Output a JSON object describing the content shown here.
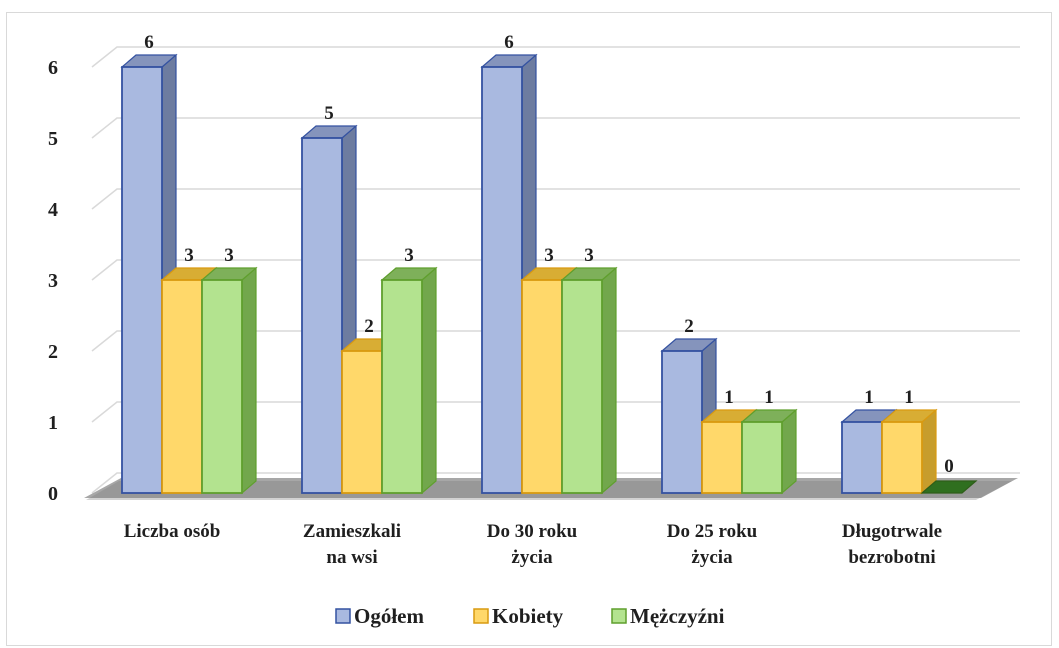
{
  "chart_data": {
    "type": "bar",
    "categories": [
      [
        "Liczba osób"
      ],
      [
        "Zamieszkali",
        "na wsi"
      ],
      [
        "Do 30 roku",
        "życia"
      ],
      [
        "Do 25 roku",
        "życia"
      ],
      [
        "Długotrwale",
        "bezrobotni"
      ]
    ],
    "series": [
      {
        "name": "Ogółem",
        "values": [
          6,
          5,
          6,
          2,
          1
        ],
        "color": "#a9b9e0",
        "side_color": "#6d7ca0",
        "top_color": "#8594bc",
        "stroke": "#3452a1"
      },
      {
        "name": "Kobiety",
        "values": [
          3,
          2,
          3,
          1,
          1
        ],
        "color": "#ffd86a",
        "side_color": "#c79d2c",
        "top_color": "#d8ad34",
        "stroke": "#d99a10"
      },
      {
        "name": "Mężczyźni",
        "values": [
          3,
          3,
          3,
          1,
          0
        ],
        "color": "#b3e38f",
        "side_color": "#72a74c",
        "top_color": "#7eb05a",
        "stroke": "#5f9f2d"
      }
    ],
    "yticks": [
      0,
      1,
      2,
      3,
      4,
      5,
      6
    ],
    "ylim": [
      0,
      6
    ],
    "grid": true,
    "legend_position": "bottom",
    "data_labels": true,
    "title": "",
    "xlabel": "",
    "ylabel": ""
  }
}
